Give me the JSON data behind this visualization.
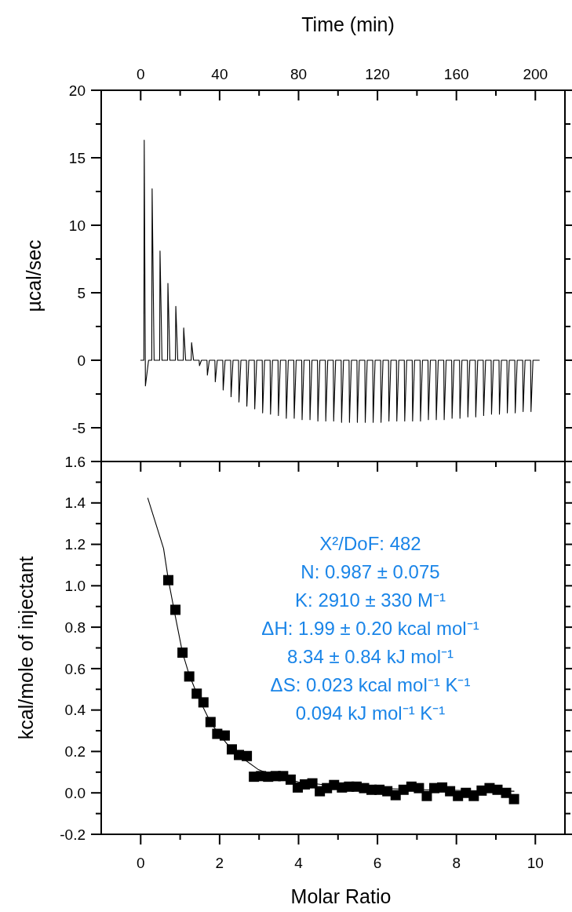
{
  "chart_data": [
    {
      "type": "line",
      "xlabel": "Time (min)",
      "ylabel": "µcal/sec",
      "xlim": [
        -20,
        215
      ],
      "xticks": [
        0,
        {
          "value": 20,
          "label": null
        },
        40,
        {
          "value": 60,
          "label": null
        },
        80,
        {
          "value": 100,
          "label": null
        },
        120,
        {
          "value": 140,
          "label": null
        },
        160,
        {
          "value": 180,
          "label": null
        },
        200
      ],
      "ylim": [
        -7.5,
        20
      ],
      "yticks": [
        {
          "value": -7.5,
          "label": null
        },
        -5,
        {
          "value": -2.5,
          "label": null
        },
        0,
        {
          "value": 2.5,
          "label": null
        },
        5,
        {
          "value": 7.5,
          "label": null
        },
        10,
        {
          "value": 12.5,
          "label": null
        },
        15,
        {
          "value": 17.5,
          "label": null
        },
        20
      ],
      "series": [
        {
          "color": "#000000",
          "x": [
            0,
            1.6,
            1.8,
            2.4,
            4.0,
            5.6,
            5.8,
            6.8,
            9.6,
            9.8,
            10.8,
            13.6,
            13.8,
            14.8,
            17.6,
            17.8,
            18.8,
            21.6,
            21.8,
            22.8,
            25.6,
            25.8,
            26.8,
            29.6,
            29.8,
            30.8,
            33.6,
            33.8,
            34.8,
            37.6,
            37.8,
            38.8,
            41.6,
            41.8,
            42.8,
            45.6,
            45.8,
            46.8,
            49.6,
            49.8,
            50.8,
            53.6,
            53.8,
            54.8,
            57.6,
            57.8,
            58.8,
            61.6,
            61.8,
            62.8,
            65.6,
            65.8,
            66.8,
            69.6,
            69.8,
            70.8,
            73.6,
            73.8,
            74.8,
            77.6,
            77.8,
            78.8,
            81.6,
            81.8,
            82.8,
            85.6,
            85.8,
            86.8,
            89.6,
            89.8,
            90.8,
            93.6,
            93.8,
            94.8,
            97.6,
            97.8,
            98.8,
            101.6,
            101.8,
            102.8,
            105.6,
            105.8,
            106.8,
            109.6,
            109.8,
            110.8,
            113.6,
            113.8,
            114.8,
            117.6,
            117.8,
            118.8,
            121.6,
            121.8,
            122.8,
            125.6,
            125.8,
            126.8,
            129.6,
            129.8,
            130.8,
            133.6,
            133.8,
            134.8,
            137.6,
            137.8,
            138.8,
            141.6,
            141.8,
            142.8,
            145.6,
            145.8,
            146.8,
            149.6,
            149.8,
            150.8,
            153.6,
            153.8,
            154.8,
            157.6,
            157.8,
            158.8,
            161.6,
            161.8,
            162.8,
            165.6,
            165.8,
            166.8,
            169.6,
            169.8,
            170.8,
            173.6,
            173.8,
            174.8,
            177.6,
            177.8,
            178.8,
            181.6,
            181.8,
            182.8,
            185.6,
            185.8,
            186.8,
            189.6,
            189.8,
            190.8,
            193.6,
            193.8,
            194.8,
            197.6,
            197.8,
            198.8,
            202
          ],
          "values": [
            0,
            0,
            16.3,
            -1.9,
            0,
            0,
            12.7,
            0,
            0,
            8.1,
            0,
            0,
            5.7,
            0,
            0,
            4.0,
            0,
            0,
            2.4,
            0,
            0,
            1.3,
            0,
            0,
            -0.4,
            0,
            0,
            -1.1,
            0,
            0,
            -1.6,
            0,
            0,
            -2.2,
            0,
            0,
            -2.7,
            0,
            0,
            -3.1,
            0,
            0,
            -3.4,
            0,
            0,
            -3.6,
            0,
            0,
            -3.9,
            0,
            0,
            -4.0,
            0,
            0,
            -4.1,
            0,
            0,
            -4.3,
            0,
            0,
            -4.3,
            0,
            0,
            -4.4,
            0,
            0,
            -4.4,
            0,
            0,
            -4.5,
            0,
            0,
            -4.5,
            0,
            0,
            -4.5,
            0,
            0,
            -4.6,
            0,
            0,
            -4.6,
            0,
            0,
            -4.6,
            0,
            0,
            -4.6,
            0,
            0,
            -4.6,
            0,
            0,
            -4.6,
            0,
            0,
            -4.5,
            0,
            0,
            -4.5,
            0,
            0,
            -4.5,
            0,
            0,
            -4.5,
            0,
            0,
            -4.5,
            0,
            0,
            -4.4,
            0,
            0,
            -4.4,
            0,
            0,
            -4.4,
            0,
            0,
            -4.3,
            0,
            0,
            -4.3,
            0,
            0,
            -4.2,
            0,
            0,
            -4.2,
            0,
            0,
            -4.1,
            0,
            0,
            -4.0,
            0,
            0,
            -4.0,
            0,
            0,
            -3.9,
            0,
            0,
            -3.9,
            0,
            0,
            -3.8,
            0,
            0,
            -3.8,
            0,
            0
          ]
        }
      ]
    },
    {
      "type": "scatter",
      "xlabel": "Molar Ratio",
      "ylabel": "kcal/mole of injectant",
      "xlim": [
        -1,
        10.75
      ],
      "xticks": [
        0,
        {
          "value": 1,
          "label": null
        },
        2,
        {
          "value": 3,
          "label": null
        },
        4,
        {
          "value": 5,
          "label": null
        },
        6,
        {
          "value": 7,
          "label": null
        },
        8,
        {
          "value": 9,
          "label": null
        },
        10
      ],
      "ylim": [
        -0.2,
        1.6
      ],
      "yticks": [
        -0.2,
        {
          "value": -0.1,
          "label": null
        },
        {
          "value": 0,
          "label": "0.0"
        },
        {
          "value": 0.1,
          "label": null
        },
        0.2,
        {
          "value": 0.3,
          "label": null
        },
        0.4,
        {
          "value": 0.5,
          "label": null
        },
        0.6,
        {
          "value": 0.7,
          "label": null
        },
        0.8,
        {
          "value": 0.9,
          "label": null
        },
        {
          "value": 1,
          "label": "1.0"
        },
        {
          "value": 1.1,
          "label": null
        },
        1.2,
        {
          "value": 1.3,
          "label": null
        },
        1.4,
        {
          "value": 1.5,
          "label": null
        },
        1.6
      ],
      "series": [
        {
          "marker": "square",
          "color": "#000000",
          "x": [
            0.7,
            0.88,
            1.06,
            1.23,
            1.42,
            1.59,
            1.77,
            1.94,
            2.13,
            2.31,
            2.49,
            2.69,
            2.87,
            3.05,
            3.23,
            3.42,
            3.61,
            3.8,
            3.98,
            4.16,
            4.35,
            4.54,
            4.72,
            4.9,
            5.1,
            5.28,
            5.47,
            5.66,
            5.85,
            6.05,
            6.25,
            6.46,
            6.66,
            6.86,
            7.05,
            7.25,
            7.44,
            7.64,
            7.84,
            8.04,
            8.24,
            8.44,
            8.64,
            8.84,
            9.04,
            9.26,
            9.46
          ],
          "values": [
            1.027,
            0.884,
            0.677,
            0.562,
            0.479,
            0.437,
            0.342,
            0.285,
            0.277,
            0.21,
            0.183,
            0.178,
            0.078,
            0.081,
            0.078,
            0.081,
            0.081,
            0.064,
            0.026,
            0.041,
            0.046,
            0.008,
            0.023,
            0.038,
            0.026,
            0.03,
            0.03,
            0.023,
            0.015,
            0.015,
            0.008,
            -0.011,
            0.015,
            0.03,
            0.023,
            -0.015,
            0.023,
            0.026,
            0.008,
            -0.015,
            0.0,
            -0.015,
            0.011,
            0.023,
            0.015,
            0.0,
            -0.03
          ]
        },
        {
          "type": "line",
          "color": "#000000",
          "x": [
            0.18,
            0.4,
            0.58,
            0.7,
            0.88,
            1.06,
            1.23,
            1.42,
            1.59,
            1.77,
            2.0,
            2.26,
            2.6,
            2.97,
            3.4,
            4.0,
            4.8,
            5.6,
            6.4,
            7.2,
            8.3,
            9.46
          ],
          "values": [
            1.423,
            1.29,
            1.18,
            1.03,
            0.85,
            0.677,
            0.57,
            0.48,
            0.41,
            0.34,
            0.28,
            0.22,
            0.165,
            0.114,
            0.08,
            0.053,
            0.036,
            0.026,
            0.02,
            0.015,
            0.011,
            0.008
          ]
        }
      ],
      "annotations": [
        "X²/DoF: 482",
        "N: 0.987 ± 0.075",
        "K: 2910 ± 330 M⁻¹",
        "ΔH: 1.99 ± 0.20 kcal mol⁻¹",
        "8.34 ± 0.84 kJ mol⁻¹",
        "ΔS: 0.023 kcal mol⁻¹ K⁻¹",
        "0.094 kJ mol⁻¹ K⁻¹"
      ]
    }
  ]
}
